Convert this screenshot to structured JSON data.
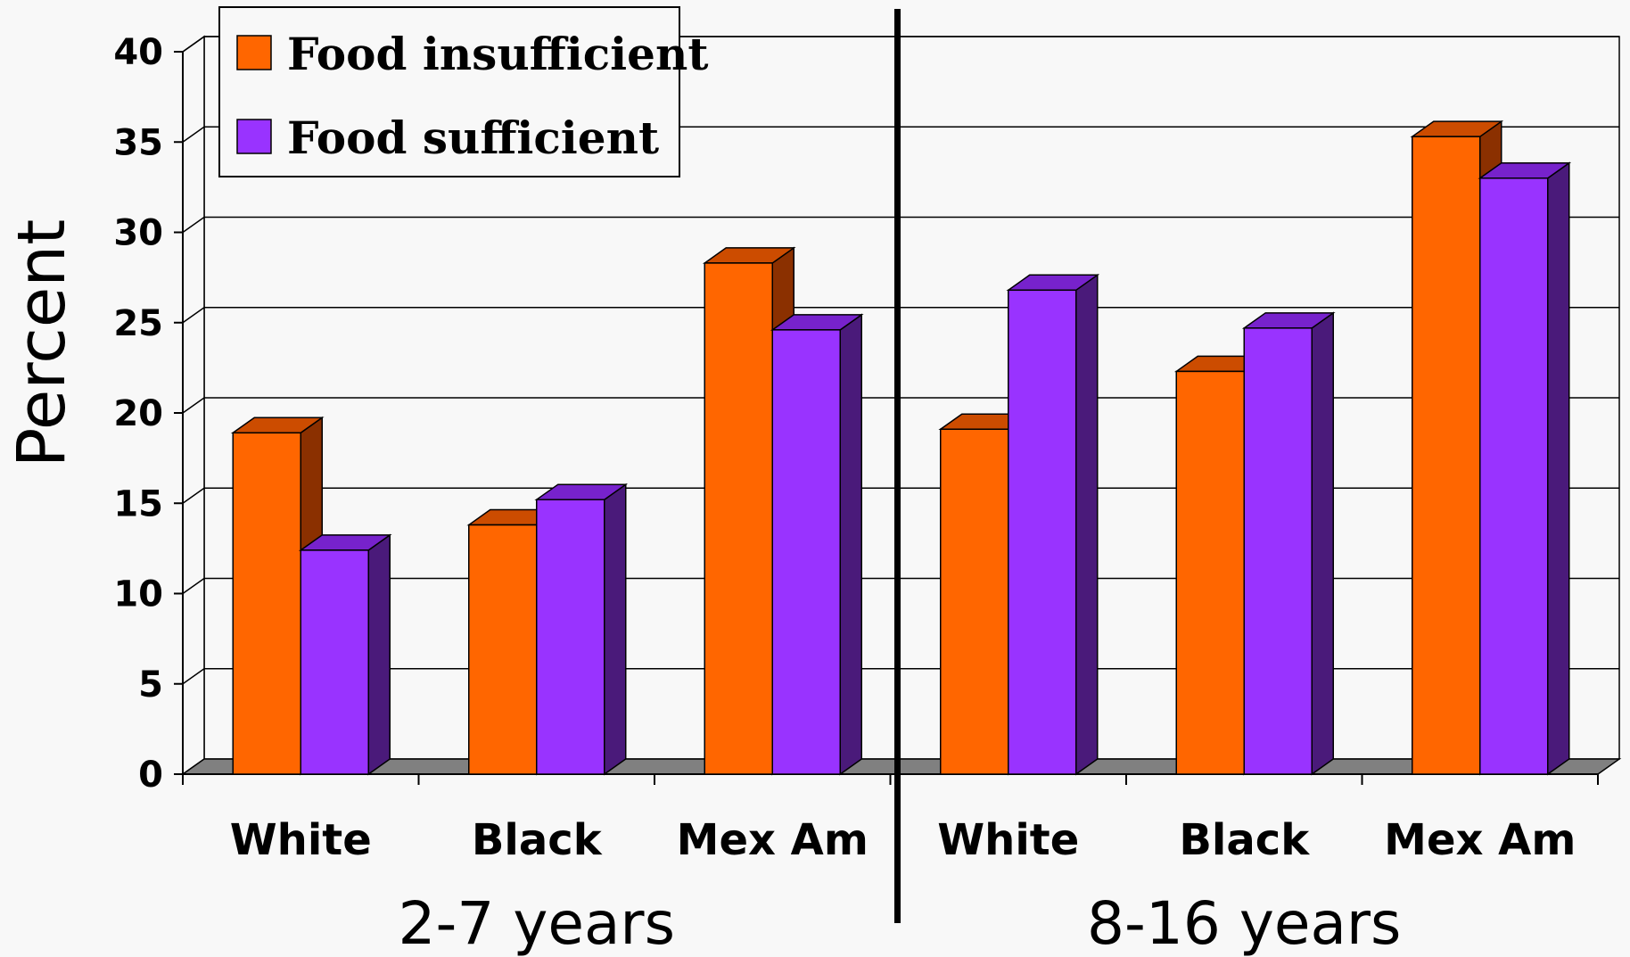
{
  "chart_data": {
    "type": "bar",
    "ylabel": "Percent",
    "ylim": [
      0,
      40
    ],
    "yticks": [
      "0",
      "5",
      "10",
      "15",
      "20",
      "25",
      "30",
      "35",
      "40"
    ],
    "categories": [
      "White",
      "Black",
      "Mex Am",
      "White",
      "Black",
      "Mex Am"
    ],
    "groups": [
      {
        "label": "2-7 years",
        "categories": [
          "White",
          "Black",
          "Mex Am"
        ]
      },
      {
        "label": "8-16 years",
        "categories": [
          "White",
          "Black",
          "Mex Am"
        ]
      }
    ],
    "series": [
      {
        "name": "Food insufficient",
        "color": "#ff6600",
        "side_color": "#8b3000",
        "values": [
          18.9,
          13.8,
          28.3,
          19.1,
          22.3,
          35.3
        ]
      },
      {
        "name": "Food sufficient",
        "color": "#9933ff",
        "side_color": "#4a1a7a",
        "values": [
          12.4,
          15.2,
          24.6,
          26.8,
          24.7,
          33.0
        ]
      }
    ],
    "legend_position": "top-left",
    "grid": true,
    "style": "3d-clustered-bar"
  }
}
